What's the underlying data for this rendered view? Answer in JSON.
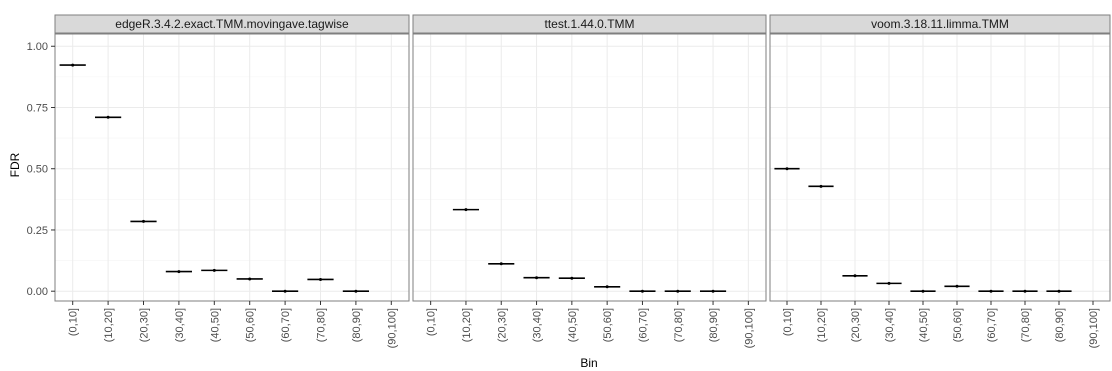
{
  "chart_data": {
    "type": "boxplot",
    "xlabel": "Bin",
    "ylabel": "FDR",
    "ylim": [
      -0.04,
      1.05
    ],
    "y_ticks": [
      0.0,
      0.25,
      0.5,
      0.75,
      1.0
    ],
    "y_tick_labels": [
      "0.00",
      "0.25",
      "0.50",
      "0.75",
      "1.00"
    ],
    "categories": [
      "(0,10]",
      "(10,20]",
      "(20,30]",
      "(30,40]",
      "(40,50]",
      "(50,60]",
      "(60,70]",
      "(70,80]",
      "(80,90]",
      "(90,100]"
    ],
    "grid": true,
    "panels": [
      {
        "title": "edgeR.3.4.2.exact.TMM.movingave.tagwise",
        "values": [
          0.923,
          0.71,
          0.285,
          0.08,
          0.085,
          0.05,
          0.0,
          0.048,
          0.0,
          null
        ]
      },
      {
        "title": "ttest.1.44.0.TMM",
        "values": [
          null,
          0.333,
          0.112,
          0.055,
          0.053,
          0.018,
          0.0,
          0.0,
          0.0,
          null
        ]
      },
      {
        "title": "voom.3.18.11.limma.TMM",
        "values": [
          0.5,
          0.428,
          0.063,
          0.032,
          0.0,
          0.02,
          0.0,
          0.0,
          0.0,
          null
        ]
      }
    ]
  },
  "colors": {
    "panel_border": "#7f7f7f",
    "strip_fill": "#d9d9d9",
    "grid_major": "#ebebeb",
    "grid_minor": "#f5f5f5",
    "box_line": "#000000"
  }
}
